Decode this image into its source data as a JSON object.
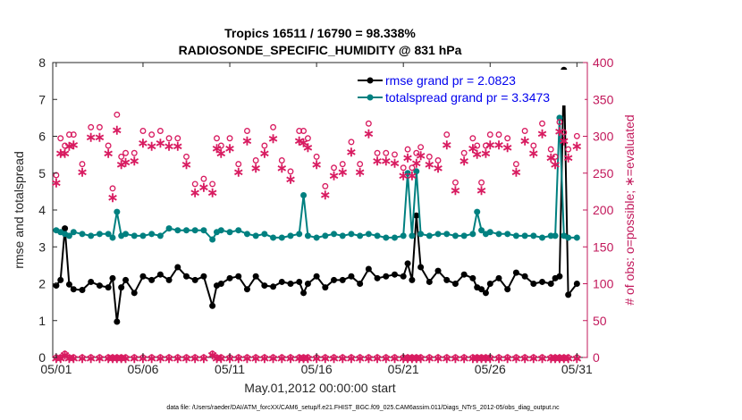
{
  "chart_data": {
    "type": "line",
    "title_line1": "Tropics 16511 / 16790 = 98.338%",
    "title_line2": "RADIOSONDE_SPECIFIC_HUMIDITY @ 831 hPa",
    "xlabel": "May.01,2012 00:00:00 start",
    "ylabel_left": "rmse and totalspread",
    "ylabel_right": "# of obs: o=possible; ∗=evaluated",
    "footer": "data file: /Users/raeder/DAI/ATM_forcXX/CAM6_setup/f.e21.FHIST_BGC.f09_025.CAM6assim.011/Diags_NTrS_2012-05/obs_diag_output.nc",
    "xlim": [
      0.8,
      31.6
    ],
    "ylim_left": [
      0,
      8
    ],
    "ylim_right": [
      0,
      400
    ],
    "xticks": [
      {
        "x": 1,
        "label": "05/01"
      },
      {
        "x": 6,
        "label": "05/06"
      },
      {
        "x": 11,
        "label": "05/11"
      },
      {
        "x": 16,
        "label": "05/16"
      },
      {
        "x": 21,
        "label": "05/21"
      },
      {
        "x": 26,
        "label": "05/26"
      },
      {
        "x": 31,
        "label": "05/31"
      }
    ],
    "yticks_left": [
      "0",
      "1",
      "2",
      "3",
      "4",
      "5",
      "6",
      "7",
      "8"
    ],
    "yticks_right": [
      "0",
      "50",
      "100",
      "150",
      "200",
      "250",
      "300",
      "350",
      "400"
    ],
    "legend": [
      {
        "label": "rmse grand pr = 2.0823",
        "color": "#000000"
      },
      {
        "label": "totalspread grand pr = 3.3473",
        "color": "#008080"
      }
    ],
    "colors": {
      "rmse": "#000000",
      "totalspread": "#008080",
      "obs": "#d81b60",
      "right_axis": "#c2185b"
    },
    "x": [
      1.0,
      1.25,
      1.5,
      1.75,
      2.0,
      2.5,
      3.0,
      3.5,
      4.0,
      4.25,
      4.5,
      4.75,
      5.0,
      5.5,
      6.0,
      6.5,
      7.0,
      7.5,
      8.0,
      8.5,
      9.0,
      9.5,
      10.0,
      10.25,
      10.5,
      11.0,
      11.5,
      12.0,
      12.5,
      13.0,
      13.5,
      14.0,
      14.5,
      15.0,
      15.25,
      15.5,
      16.0,
      16.5,
      17.0,
      17.5,
      18.0,
      18.5,
      19.0,
      19.5,
      20.0,
      20.5,
      21.0,
      21.25,
      21.5,
      21.75,
      22.0,
      22.5,
      23.0,
      23.5,
      24.0,
      24.5,
      25.0,
      25.25,
      25.5,
      25.75,
      26.0,
      26.5,
      27.0,
      27.5,
      28.0,
      28.5,
      29.0,
      29.5,
      29.75,
      30.0,
      30.25,
      30.5,
      31.0
    ],
    "series": [
      {
        "name": "rmse",
        "values": [
          1.95,
          2.1,
          3.5,
          1.98,
          1.85,
          1.83,
          2.05,
          1.95,
          1.9,
          2.15,
          0.97,
          1.9,
          2.1,
          1.75,
          2.2,
          2.1,
          2.25,
          2.1,
          2.45,
          2.2,
          2.1,
          2.2,
          1.4,
          1.95,
          2.0,
          2.15,
          2.2,
          1.85,
          2.2,
          1.95,
          1.92,
          2.05,
          2.0,
          2.05,
          1.75,
          2.0,
          2.2,
          1.9,
          2.1,
          2.1,
          2.2,
          2.0,
          2.4,
          2.15,
          2.2,
          2.25,
          2.2,
          2.55,
          2.1,
          3.85,
          2.45,
          2.05,
          2.35,
          2.1,
          2.0,
          2.25,
          2.15,
          1.9,
          1.85,
          1.75,
          2.0,
          2.15,
          1.85,
          2.3,
          2.2,
          2.0,
          2.05,
          2.0,
          2.15,
          2.2,
          7.8,
          1.7,
          2.0
        ]
      },
      {
        "name": "totalspread",
        "values": [
          3.45,
          3.4,
          3.35,
          3.3,
          3.4,
          3.35,
          3.3,
          3.35,
          3.35,
          3.25,
          3.95,
          3.3,
          3.35,
          3.3,
          3.3,
          3.35,
          3.3,
          3.5,
          3.45,
          3.45,
          3.45,
          3.45,
          3.2,
          3.4,
          3.45,
          3.4,
          3.45,
          3.35,
          3.3,
          3.35,
          3.25,
          3.25,
          3.3,
          3.35,
          4.4,
          3.3,
          3.25,
          3.3,
          3.35,
          3.3,
          3.35,
          3.3,
          3.35,
          3.3,
          3.25,
          3.25,
          3.3,
          5.0,
          3.3,
          5.05,
          3.35,
          3.3,
          3.35,
          3.35,
          3.3,
          3.3,
          3.35,
          3.95,
          3.45,
          3.35,
          3.4,
          3.35,
          3.35,
          3.3,
          3.3,
          3.3,
          3.25,
          3.3,
          3.3,
          6.5,
          3.3,
          3.25,
          3.25
        ]
      },
      {
        "name": "obs_possible",
        "values": [
          240,
          290,
          280,
          295,
          295,
          255,
          305,
          305,
          280,
          222,
          322,
          265,
          270,
          270,
          300,
          295,
          300,
          290,
          290,
          265,
          228,
          235,
          228,
          290,
          280,
          290,
          255,
          300,
          260,
          280,
          305,
          260,
          245,
          300,
          300,
          290,
          265,
          225,
          250,
          255,
          285,
          255,
          310,
          270,
          270,
          268,
          250,
          275,
          250,
          270,
          278,
          265,
          260,
          295,
          230,
          270,
          290,
          280,
          230,
          280,
          295,
          295,
          290,
          255,
          300,
          280,
          310,
          275,
          265,
          312,
          298,
          275,
          293
        ]
      },
      {
        "name": "obs_evaluated",
        "values": [
          238,
          278,
          278,
          288,
          290,
          253,
          300,
          300,
          278,
          218,
          310,
          263,
          266,
          268,
          292,
          288,
          292,
          288,
          288,
          263,
          225,
          232,
          225,
          285,
          278,
          285,
          253,
          295,
          258,
          278,
          298,
          258,
          243,
          295,
          293,
          286,
          263,
          222,
          248,
          253,
          280,
          253,
          305,
          268,
          268,
          265,
          248,
          272,
          248,
          265,
          275,
          263,
          258,
          290,
          228,
          268,
          285,
          277,
          228,
          278,
          290,
          290,
          286,
          253,
          295,
          278,
          305,
          272,
          263,
          308,
          295,
          272,
          288
        ]
      },
      {
        "name": "obs_zero_line",
        "values": [
          0,
          0,
          5,
          0,
          0,
          0,
          0,
          0,
          0,
          0,
          0,
          0,
          0,
          0,
          0,
          0,
          0,
          0,
          0,
          0,
          0,
          0,
          5,
          0,
          0,
          0,
          0,
          0,
          0,
          0,
          0,
          0,
          0,
          0,
          0,
          0,
          0,
          0,
          0,
          0,
          0,
          0,
          0,
          0,
          0,
          0,
          0,
          0,
          0,
          0,
          0,
          0,
          0,
          0,
          0,
          0,
          0,
          0,
          0,
          0,
          0,
          0,
          0,
          0,
          0,
          0,
          0,
          0,
          0,
          0,
          0,
          0,
          0
        ]
      }
    ]
  }
}
